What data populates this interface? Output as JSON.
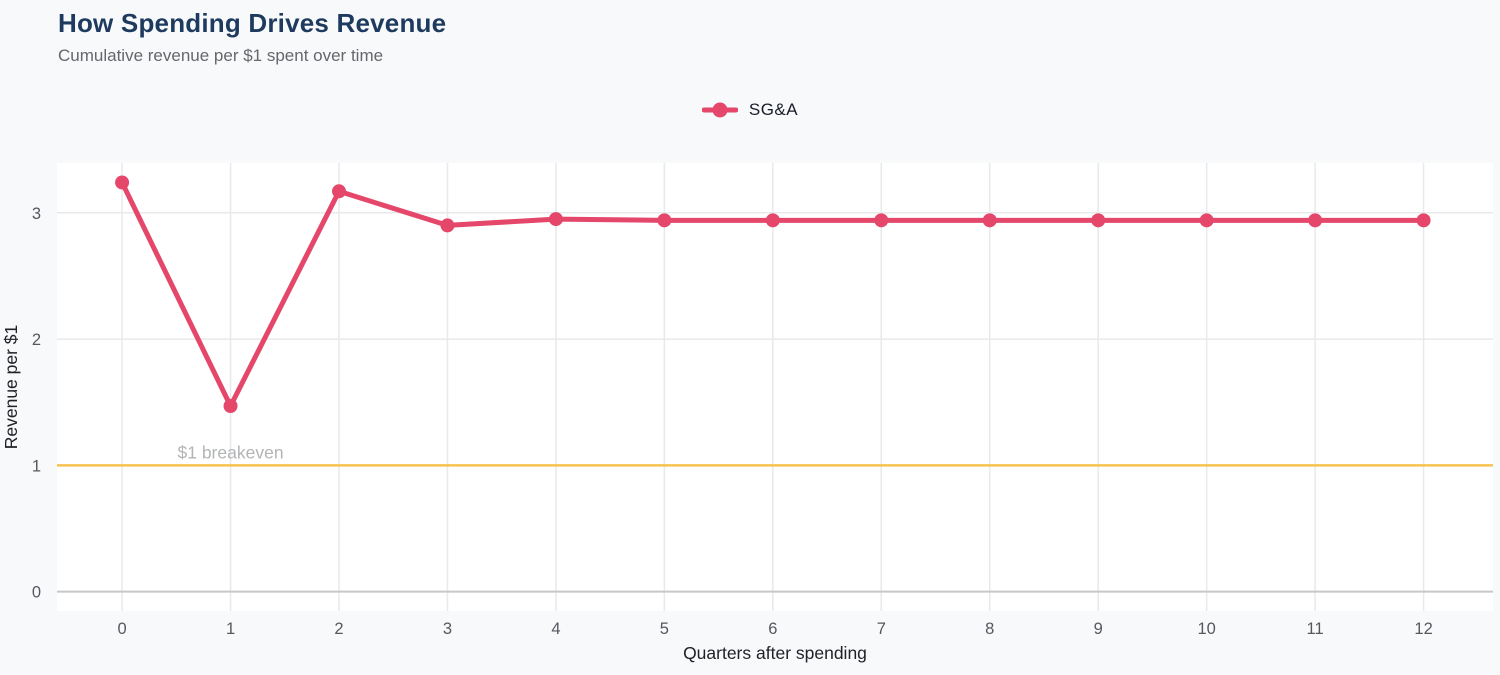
{
  "header": {
    "title": "How Spending Drives Revenue",
    "subtitle": "Cumulative revenue per $1 spent over time"
  },
  "legend": {
    "series_label": "SG&A"
  },
  "colors": {
    "series": "#e5476b",
    "breakeven_line": "#f6c24f",
    "title_text": "#1e3a5f",
    "subtitle_text": "#65676c",
    "tick_text": "#55585e",
    "axis_title_text": "#202227",
    "annotation_text": "#b2b4b6",
    "grid": "#e8e9ea",
    "zero_line": "#c7c8ca",
    "page_bg": "#f8f9fa",
    "plot_bg": "#ffffff",
    "legend_text": "#191c28"
  },
  "chart_data": {
    "type": "line",
    "title": "How Spending Drives Revenue",
    "subtitle": "Cumulative revenue per $1 spent over time",
    "xlabel": "Quarters after spending",
    "ylabel": "Revenue per $1",
    "legend_position": "top-center",
    "grid": true,
    "x_ticks": [
      0,
      1,
      2,
      3,
      4,
      5,
      6,
      7,
      8,
      9,
      10,
      11,
      12
    ],
    "y_ticks": [
      0,
      1,
      2,
      3
    ],
    "xlim": [
      -0.6,
      12.64
    ],
    "ylim": [
      -0.153,
      3.394
    ],
    "series": [
      {
        "name": "SG&A",
        "color": "#e5476b",
        "x": [
          0,
          1,
          2,
          3,
          4,
          5,
          6,
          7,
          8,
          9,
          10,
          11,
          12
        ],
        "values": [
          3.24,
          1.47,
          3.17,
          2.9,
          2.95,
          2.94,
          2.94,
          2.94,
          2.94,
          2.94,
          2.94,
          2.94,
          2.94
        ]
      }
    ],
    "reference_line": {
      "y": 1,
      "label": "$1 breakeven"
    },
    "annotation": {
      "text": "$1 breakeven",
      "x": 1,
      "y": 1
    }
  }
}
